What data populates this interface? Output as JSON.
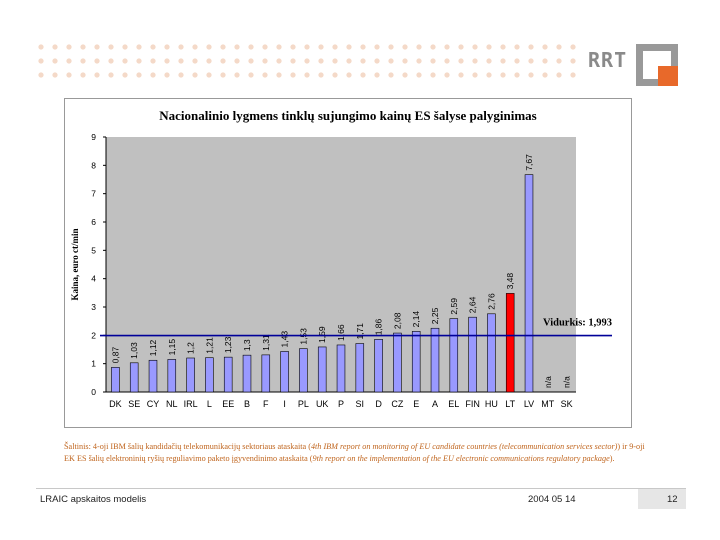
{
  "logo": {
    "text": "RRT"
  },
  "chart_data": {
    "type": "bar",
    "title": "Nacionalinio lygmens tinklų sujungimo kainų ES šalyse palyginimas",
    "ylabel": "Kaina, euro ct/min",
    "xlabel": "",
    "ylim": [
      0,
      9
    ],
    "yticks": [
      "0",
      "1",
      "2",
      "3",
      "4",
      "5",
      "6",
      "7",
      "8",
      "9"
    ],
    "categories": [
      "DK",
      "SE",
      "CY",
      "NL",
      "IRL",
      "L",
      "EE",
      "B",
      "F",
      "I",
      "PL",
      "UK",
      "P",
      "SI",
      "D",
      "CZ",
      "E",
      "A",
      "EL",
      "FIN",
      "HU",
      "LT",
      "LV",
      "MT",
      "SK"
    ],
    "values": [
      0.87,
      1.03,
      1.12,
      1.15,
      1.2,
      1.21,
      1.23,
      1.3,
      1.31,
      1.43,
      1.53,
      1.59,
      1.66,
      1.71,
      1.86,
      2.08,
      2.14,
      2.25,
      2.59,
      2.64,
      2.76,
      3.48,
      7.67,
      null,
      null
    ],
    "value_labels": [
      "0,87",
      "1,03",
      "1,12",
      "1,15",
      "1,2",
      "1,21",
      "1,23",
      "1,3",
      "1,31",
      "1,43",
      "1,53",
      "1,59",
      "1,66",
      "1,71",
      "1,86",
      "2,08",
      "2,14",
      "2,25",
      "2,59",
      "2,64",
      "2,76",
      "3,48",
      "7,67",
      "n/a",
      "n/a"
    ],
    "highlight": "LT",
    "average": {
      "label": "Vidurkis: 1,993",
      "value": 1.993
    },
    "colors": {
      "bar": "#9999ff",
      "highlight": "#ff0000",
      "plot_bg": "#c0c0c0",
      "average_line": "#000099"
    }
  },
  "source": {
    "prefix": "Šaltinis: 4-oji IBM šalių kandidačių telekomunikacijų sektoriaus ataskaita (",
    "italic1": "4th IBM report on monitoring of EU candidate countries (telecommunication services sector)",
    "middle": ") ir 9-oji EK ES šalių elektroninių ryšių reguliavimo paketo įgyvendinimo ataskaita (",
    "italic2": "9th report on the implementation of the EU electronic communications regulatory package",
    "suffix": ")."
  },
  "footer": {
    "left": "LRAIC apskaitos modelis",
    "date": "2004 05 14",
    "page": "12"
  }
}
